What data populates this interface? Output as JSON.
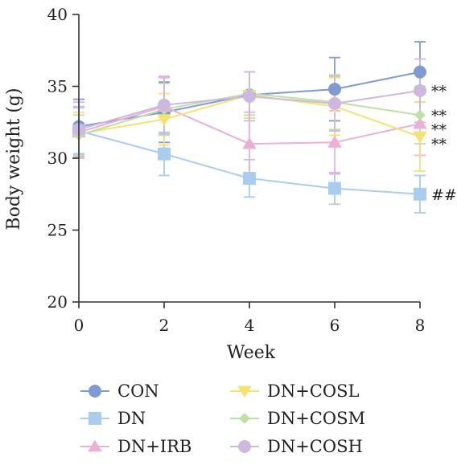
{
  "chart_data": {
    "type": "line",
    "title": "",
    "xlabel": "Week",
    "ylabel": "Body weight (g)",
    "x": [
      0,
      2,
      4,
      6,
      8
    ],
    "xticks": [
      "0",
      "2",
      "4",
      "6",
      "8"
    ],
    "yticks": [
      "20",
      "25",
      "30",
      "35",
      "40"
    ],
    "xlim": [
      0,
      8
    ],
    "ylim": [
      20,
      40
    ],
    "grid": false,
    "legend_position": "bottom",
    "series": [
      {
        "name": "CON",
        "marker": "circle",
        "color": "#7f9bd0",
        "values": [
          32.2,
          33.2,
          34.4,
          34.8,
          36.0
        ],
        "errors": [
          1.9,
          2.1,
          1.6,
          2.2,
          2.1
        ]
      },
      {
        "name": "DN",
        "marker": "square",
        "color": "#a9cdee",
        "values": [
          31.9,
          30.3,
          28.6,
          27.9,
          27.5
        ],
        "errors": [
          1.6,
          1.5,
          1.3,
          1.1,
          1.3
        ]
      },
      {
        "name": "DN+IRB",
        "marker": "triangle-up",
        "color": "#ecb0d6",
        "values": [
          31.8,
          33.6,
          31.0,
          31.1,
          32.4
        ],
        "errors": [
          1.8,
          2.0,
          2.2,
          2.2,
          2.2
        ]
      },
      {
        "name": "DN+COSL",
        "marker": "triangle-down",
        "color": "#f5e273",
        "values": [
          31.7,
          32.7,
          34.4,
          33.6,
          31.5
        ],
        "errors": [
          1.5,
          1.8,
          1.6,
          2.0,
          2.4
        ]
      },
      {
        "name": "DN+COSM",
        "marker": "diamond",
        "color": "#bfe0a4",
        "values": [
          31.6,
          33.4,
          34.5,
          33.9,
          33.0
        ],
        "errors": [
          1.4,
          1.8,
          1.5,
          1.9,
          2.0
        ]
      },
      {
        "name": "DN+COSH",
        "marker": "circle",
        "color": "#cdb8e0",
        "values": [
          32.0,
          33.7,
          34.3,
          33.8,
          34.7
        ],
        "errors": [
          1.9,
          2.0,
          1.7,
          1.9,
          2.2
        ]
      }
    ],
    "annotations": [
      {
        "text": "##",
        "x": 8,
        "y": 27.5
      },
      {
        "text": "**",
        "x": 8,
        "y": 34.7
      },
      {
        "text": "**",
        "x": 8,
        "y": 33.0
      },
      {
        "text": "**",
        "x": 8,
        "y": 32.0
      },
      {
        "text": "**",
        "x": 8,
        "y": 31.0
      }
    ]
  }
}
